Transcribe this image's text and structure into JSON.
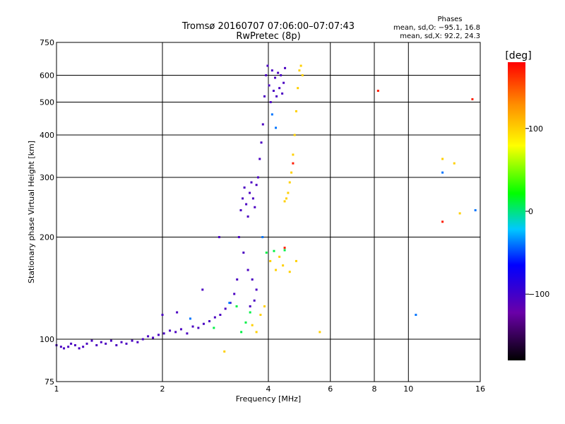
{
  "chart_data": {
    "type": "scatter",
    "title": "Tromsø 20160707 07:06:00–07:07:43",
    "subtitle": "RwPretec (8p)",
    "xlabel": "Frequency [MHz]",
    "ylabel": "Stationary phase Virtual Height [km]",
    "x_scale": "log2",
    "y_scale": "log",
    "xlim": [
      1,
      16
    ],
    "ylim": [
      75,
      750
    ],
    "x_ticks": [
      1,
      2,
      4,
      6,
      8,
      10,
      16
    ],
    "y_ticks": [
      75,
      100,
      200,
      300,
      400,
      500,
      600,
      750
    ],
    "grid": true,
    "stats": {
      "heading": "Phases",
      "line_o": "mean, sd,O: −95.1, 16.8",
      "line_x": "mean, sd,X:  92.2, 24.3"
    },
    "colorbar": {
      "label": "[deg]",
      "ticks": [
        -100,
        0,
        100
      ],
      "range": [
        -180,
        180
      ]
    },
    "series": [
      {
        "color_value": -105,
        "points": [
          [
            1.0,
            96
          ],
          [
            1.03,
            95
          ],
          [
            1.05,
            94
          ],
          [
            1.08,
            95
          ],
          [
            1.1,
            97
          ],
          [
            1.13,
            96
          ],
          [
            1.16,
            94
          ],
          [
            1.19,
            95
          ],
          [
            1.22,
            97
          ],
          [
            1.26,
            99
          ],
          [
            1.3,
            96
          ],
          [
            1.34,
            98
          ],
          [
            1.38,
            97
          ],
          [
            1.43,
            99
          ],
          [
            1.48,
            96
          ],
          [
            1.53,
            98
          ],
          [
            1.58,
            97
          ],
          [
            1.64,
            99
          ],
          [
            1.7,
            98
          ],
          [
            1.76,
            100
          ],
          [
            1.82,
            102
          ],
          [
            1.88,
            101
          ],
          [
            1.95,
            103
          ],
          [
            2.02,
            104
          ],
          [
            2.1,
            106
          ],
          [
            2.18,
            105
          ],
          [
            2.26,
            107
          ],
          [
            2.35,
            104
          ],
          [
            2.44,
            109
          ],
          [
            2.53,
            108
          ],
          [
            2.62,
            111
          ],
          [
            2.72,
            113
          ],
          [
            2.82,
            116
          ],
          [
            2.92,
            118
          ],
          [
            3.02,
            123
          ],
          [
            3.12,
            128
          ],
          [
            3.2,
            136
          ],
          [
            3.26,
            150
          ],
          [
            3.3,
            200
          ],
          [
            3.34,
            240
          ],
          [
            3.38,
            260
          ],
          [
            3.42,
            280
          ],
          [
            3.46,
            250
          ],
          [
            3.5,
            230
          ],
          [
            3.54,
            270
          ],
          [
            3.58,
            290
          ],
          [
            3.62,
            260
          ],
          [
            3.66,
            245
          ],
          [
            3.7,
            285
          ],
          [
            3.74,
            300
          ],
          [
            3.78,
            340
          ],
          [
            3.82,
            380
          ],
          [
            3.86,
            430
          ],
          [
            3.9,
            520
          ],
          [
            3.94,
            600
          ],
          [
            3.98,
            640
          ],
          [
            4.02,
            560
          ],
          [
            4.06,
            500
          ],
          [
            4.1,
            620
          ],
          [
            4.14,
            540
          ],
          [
            4.18,
            590
          ],
          [
            4.22,
            520
          ],
          [
            4.26,
            610
          ],
          [
            4.3,
            550
          ],
          [
            4.34,
            600
          ],
          [
            4.38,
            530
          ],
          [
            4.42,
            570
          ],
          [
            4.46,
            630
          ],
          [
            3.4,
            180
          ],
          [
            3.5,
            160
          ],
          [
            3.6,
            150
          ],
          [
            3.7,
            140
          ],
          [
            3.55,
            125
          ],
          [
            3.65,
            130
          ],
          [
            2.9,
            200
          ],
          [
            2.6,
            140
          ],
          [
            2.2,
            120
          ],
          [
            2.0,
            118
          ]
        ]
      },
      {
        "color_value": 100,
        "points": [
          [
            4.55,
            270
          ],
          [
            4.6,
            290
          ],
          [
            4.65,
            310
          ],
          [
            4.7,
            350
          ],
          [
            4.75,
            400
          ],
          [
            4.8,
            470
          ],
          [
            4.85,
            550
          ],
          [
            4.9,
            620
          ],
          [
            4.95,
            640
          ],
          [
            5.0,
            600
          ],
          [
            4.5,
            260
          ],
          [
            4.45,
            255
          ],
          [
            3.6,
            110
          ],
          [
            3.7,
            105
          ],
          [
            3.8,
            118
          ],
          [
            3.9,
            125
          ],
          [
            4.05,
            170
          ],
          [
            4.2,
            160
          ],
          [
            4.3,
            175
          ],
          [
            4.4,
            165
          ],
          [
            4.6,
            158
          ],
          [
            4.8,
            170
          ],
          [
            5.6,
            105
          ],
          [
            3.0,
            92
          ],
          [
            12.5,
            340
          ],
          [
            13.5,
            330
          ],
          [
            14.0,
            235
          ]
        ]
      },
      {
        "color_value": 10,
        "points": [
          [
            3.35,
            105
          ],
          [
            3.45,
            112
          ],
          [
            3.55,
            120
          ],
          [
            3.95,
            180
          ],
          [
            4.15,
            182
          ],
          [
            4.45,
            183
          ],
          [
            3.25,
            125
          ],
          [
            2.8,
            108
          ]
        ]
      },
      {
        "color_value": 170,
        "points": [
          [
            8.2,
            540
          ],
          [
            15.2,
            510
          ],
          [
            4.7,
            330
          ],
          [
            12.5,
            222
          ],
          [
            4.45,
            186
          ]
        ]
      },
      {
        "color_value": -40,
        "points": [
          [
            4.1,
            460
          ],
          [
            4.2,
            420
          ],
          [
            3.85,
            200
          ],
          [
            10.5,
            118
          ],
          [
            12.5,
            310
          ],
          [
            15.5,
            240
          ],
          [
            2.4,
            115
          ],
          [
            3.1,
            128
          ]
        ]
      }
    ]
  }
}
